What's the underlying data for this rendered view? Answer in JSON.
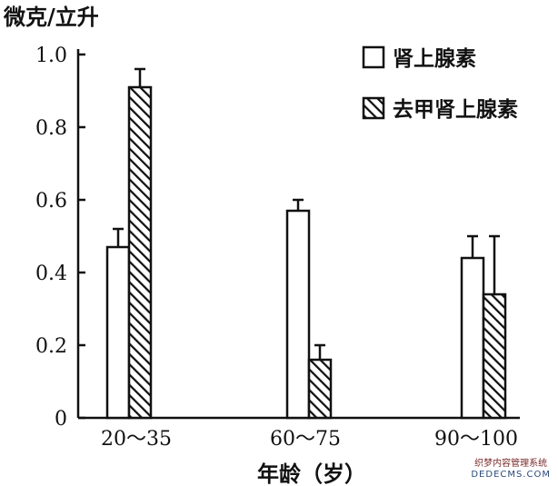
{
  "chart_data": {
    "type": "bar",
    "ylabel": "微克/立升",
    "xlabel": "年龄（岁）",
    "categories": [
      "20～35",
      "60～75",
      "90～100"
    ],
    "ylim": [
      0,
      1.0
    ],
    "yticks": [
      "0",
      "0.2",
      "0.4",
      "0.6",
      "0.8",
      "1.0"
    ],
    "ytick_values": [
      0,
      0.2,
      0.4,
      0.6,
      0.8,
      1.0
    ],
    "legend_position": "top-right",
    "series": [
      {
        "name": "肾上腺素",
        "style": "hollow",
        "values": [
          0.47,
          0.57,
          0.44
        ],
        "errors": [
          0.05,
          0.03,
          0.06
        ]
      },
      {
        "name": "去甲肾上腺素",
        "style": "hatched",
        "values": [
          0.91,
          0.16,
          0.34
        ],
        "errors": [
          0.05,
          0.04,
          0.16
        ]
      }
    ],
    "grid": false
  },
  "watermark": {
    "line1": "织梦内容管理系统",
    "line2": "DEDECMS.COM"
  },
  "colors": {
    "ink": "#111111",
    "background": "#ffffff"
  }
}
